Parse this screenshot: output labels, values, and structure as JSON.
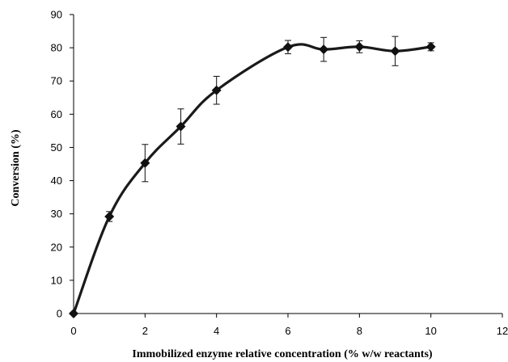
{
  "chart_data": {
    "type": "scatter",
    "title": "",
    "xlabel": "Immobilized enzyme relative concentration (% w/w reactants)",
    "ylabel": "Conversion (%)",
    "xlim": [
      0,
      12
    ],
    "ylim": [
      0,
      90
    ],
    "x_ticks": [
      "0",
      "2",
      "4",
      "6",
      "8",
      "10",
      "12"
    ],
    "y_ticks": [
      "0",
      "10",
      "20",
      "30",
      "40",
      "50",
      "60",
      "70",
      "80",
      "90"
    ],
    "grid": false,
    "legend": "none",
    "marker": "diamond",
    "line": "smooth",
    "color": "#111111",
    "series": [
      {
        "x": [
          0,
          1,
          2,
          3,
          4,
          6,
          7,
          8,
          9,
          10
        ],
        "y": [
          0,
          29.2,
          45.3,
          56.3,
          67.2,
          80.2,
          79.5,
          80.3,
          79.0,
          80.3
        ],
        "error": [
          0,
          1.5,
          5.6,
          5.3,
          4.2,
          2.0,
          3.6,
          1.8,
          4.4,
          1.2
        ]
      }
    ]
  }
}
